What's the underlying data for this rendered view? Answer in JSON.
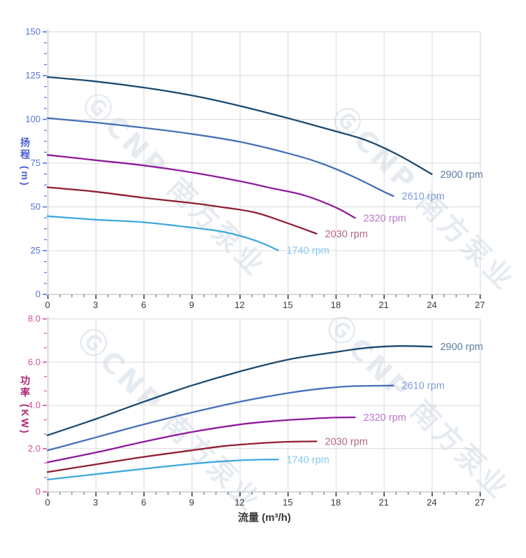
{
  "watermark": {
    "text": "ⒼCNP 南方泵业"
  },
  "styles": {
    "background": "#ffffff",
    "grid_color": "#dadada",
    "frame_color": "#c8ccd4",
    "x_axis_color": "#3a3a3a",
    "watermark_color": "rgba(173,188,209,0.30)"
  },
  "chart_data": [
    {
      "type": "line",
      "name": "head-vs-flow-chart",
      "title": "",
      "xlabel": "",
      "ylabel": "扬程 (m)",
      "xlim": [
        0,
        27
      ],
      "ylim": [
        0,
        150
      ],
      "grid": true,
      "legend_position": "end-of-line",
      "axis_color": "#5572d9",
      "title_color": "#4a5ed0",
      "xticks": {
        "major": [
          0,
          3,
          6,
          9,
          12,
          15,
          18,
          21,
          24,
          27
        ],
        "labels": [
          "0",
          "3",
          "6",
          "9",
          "12",
          "15",
          "18",
          "21",
          "24",
          "27"
        ],
        "minor_divisions": 4
      },
      "yticks": {
        "major": [
          0,
          25,
          50,
          75,
          100,
          125,
          150
        ],
        "labels": [
          "0",
          "25",
          "50",
          "75",
          "100",
          "125",
          "150"
        ],
        "minor_divisions": 4
      },
      "series": [
        {
          "name": "2900 rpm",
          "color": "#1b4a70",
          "label_color": "#5b7ea4",
          "x": [
            0,
            3,
            6,
            9,
            12,
            15,
            18,
            20,
            22,
            24
          ],
          "y": [
            124,
            121.5,
            118,
            113.5,
            107.5,
            100.5,
            93,
            87.5,
            79,
            68.5
          ]
        },
        {
          "name": "2610 rpm",
          "color": "#4570b8",
          "label_color": "#809ed8",
          "x": [
            0,
            3,
            6,
            9,
            12,
            15,
            17,
            19,
            21,
            21.6
          ],
          "y": [
            100.5,
            98,
            95,
            91.5,
            87,
            80.5,
            75,
            67.5,
            58.5,
            56
          ]
        },
        {
          "name": "2320 rpm",
          "color": "#8e1b9b",
          "label_color": "#b878c8",
          "x": [
            0,
            3,
            6,
            9,
            12,
            14,
            16,
            18,
            19.2
          ],
          "y": [
            79.5,
            76.5,
            73.5,
            69.5,
            64.5,
            60.5,
            56.5,
            49.5,
            43.5
          ]
        },
        {
          "name": "2030 rpm",
          "color": "#901f35",
          "label_color": "#b2687b",
          "x": [
            0,
            3,
            6,
            9,
            11,
            13,
            15,
            16.8
          ],
          "y": [
            61,
            58.5,
            55,
            52,
            49.5,
            46.5,
            40.5,
            34.5
          ]
        },
        {
          "name": "1740 rpm",
          "color": "#3fa9de",
          "label_color": "#85c9ee",
          "x": [
            0,
            3,
            6,
            9,
            11,
            13,
            14.4
          ],
          "y": [
            44.5,
            42.5,
            41,
            38,
            35.5,
            30.5,
            25
          ]
        }
      ]
    },
    {
      "type": "line",
      "name": "power-vs-flow-chart",
      "title": "",
      "xlabel": "流量 (m³/h)",
      "ylabel": "功率 (KW)",
      "xlim": [
        0,
        27
      ],
      "ylim": [
        0,
        8
      ],
      "grid": true,
      "legend_position": "end-of-line",
      "axis_color": "#d0509c",
      "title_color": "#b02577",
      "xticks": {
        "major": [
          0,
          3,
          6,
          9,
          12,
          15,
          18,
          21,
          24,
          27
        ],
        "labels": [
          "0",
          "3",
          "6",
          "9",
          "12",
          "15",
          "18",
          "21",
          "24",
          "27"
        ],
        "minor_divisions": 4
      },
      "yticks": {
        "major": [
          0,
          2,
          4,
          6,
          8
        ],
        "labels": [
          "0",
          "2.0",
          "4.0",
          "6.0",
          "8.0"
        ],
        "minor_divisions": 3
      },
      "series": [
        {
          "name": "2900 rpm",
          "color": "#1b4a70",
          "label_color": "#5b7ea4",
          "x": [
            0,
            3,
            6,
            9,
            12,
            15,
            18,
            20,
            22,
            24
          ],
          "y": [
            2.6,
            3.35,
            4.15,
            4.9,
            5.55,
            6.1,
            6.45,
            6.65,
            6.73,
            6.7
          ]
        },
        {
          "name": "2610 rpm",
          "color": "#4570b8",
          "label_color": "#809ed8",
          "x": [
            0,
            3,
            6,
            9,
            12,
            15,
            17,
            19,
            21.6
          ],
          "y": [
            1.9,
            2.5,
            3.1,
            3.65,
            4.15,
            4.55,
            4.75,
            4.87,
            4.9
          ]
        },
        {
          "name": "2320 rpm",
          "color": "#8e1b9b",
          "label_color": "#b878c8",
          "x": [
            0,
            3,
            6,
            9,
            12,
            14,
            16,
            18,
            19.2
          ],
          "y": [
            1.35,
            1.8,
            2.3,
            2.75,
            3.1,
            3.25,
            3.35,
            3.42,
            3.43
          ]
        },
        {
          "name": "2030 rpm",
          "color": "#901f35",
          "label_color": "#b2687b",
          "x": [
            0,
            3,
            6,
            9,
            11,
            13,
            15,
            16.8
          ],
          "y": [
            0.9,
            1.25,
            1.6,
            1.9,
            2.1,
            2.22,
            2.3,
            2.32
          ]
        },
        {
          "name": "1740 rpm",
          "color": "#3fa9de",
          "label_color": "#85c9ee",
          "x": [
            0,
            3,
            6,
            9,
            11,
            13,
            14.4
          ],
          "y": [
            0.55,
            0.8,
            1.05,
            1.28,
            1.4,
            1.47,
            1.48
          ]
        }
      ]
    }
  ]
}
